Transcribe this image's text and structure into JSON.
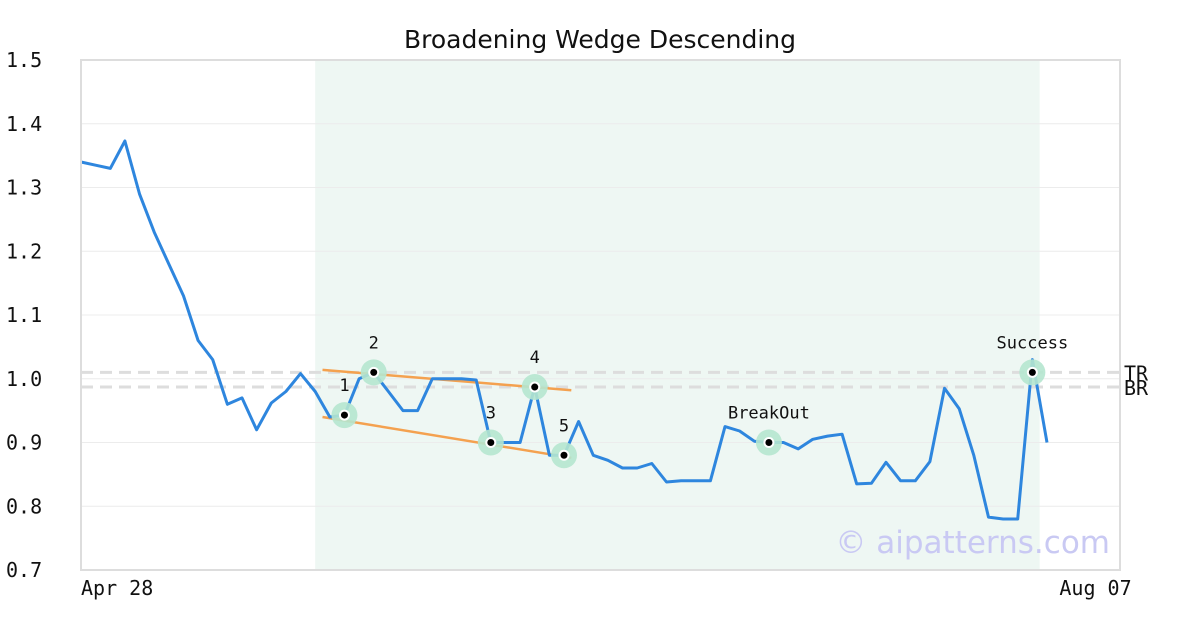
{
  "chart_data": {
    "type": "line",
    "title": "Broadening Wedge Descending",
    "xlabel": "",
    "ylabel": "",
    "ylim": [
      0.7,
      1.5
    ],
    "yticks": [
      "0.7",
      "0.8",
      "0.9",
      "1.0",
      "1.1",
      "1.2",
      "1.3",
      "1.4",
      "1.5"
    ],
    "x_tick_labels": [
      {
        "label": "Apr 28",
        "index": 0
      },
      {
        "label": "Aug 07",
        "index": 67
      }
    ],
    "grid": true,
    "colors": {
      "line": "#2e86de",
      "trendline": "#f4a14f",
      "marker_halo": "#b5e6cf",
      "highlight": "#eef7f3",
      "reference": "#dddddd",
      "frame": "#dddddd",
      "watermark": "#c9c9f3"
    },
    "highlight_range": [
      16,
      65.5
    ],
    "series": [
      {
        "values": [
          1.34,
          1.335,
          1.33,
          1.373,
          1.29,
          1.23,
          1.18,
          1.13,
          1.06,
          1.03,
          0.96,
          0.97,
          0.92,
          0.962,
          0.98,
          1.008,
          0.98,
          0.94,
          0.943,
          1.0,
          1.01,
          0.98,
          0.95,
          0.95,
          1.0,
          1.0,
          1.0,
          0.998,
          0.9,
          0.9,
          0.9,
          0.987,
          0.88,
          0.88,
          0.933,
          0.88,
          0.872,
          0.86,
          0.86,
          0.867,
          0.838,
          0.84,
          0.84,
          0.84,
          0.925,
          0.918,
          0.902,
          0.9,
          0.9,
          0.89,
          0.905,
          0.91,
          0.913,
          0.835,
          0.836,
          0.869,
          0.84,
          0.84,
          0.87,
          0.985,
          0.953,
          0.88,
          0.783,
          0.78,
          0.78,
          1.03,
          0.9
        ]
      }
    ],
    "trendlines": [
      {
        "from": [
          16.5,
          1.014
        ],
        "to": [
          33.5,
          0.982
        ]
      },
      {
        "from": [
          16.5,
          0.94
        ],
        "to": [
          33.5,
          0.876
        ]
      }
    ],
    "annotations": [
      {
        "label": "1",
        "x": 18,
        "y": 0.943
      },
      {
        "label": "2",
        "x": 20,
        "y": 1.01
      },
      {
        "label": "3",
        "x": 28,
        "y": 0.9
      },
      {
        "label": "4",
        "x": 31,
        "y": 0.987
      },
      {
        "label": "5",
        "x": 33,
        "y": 0.88
      },
      {
        "label": "BreakOut",
        "x": 47,
        "y": 0.9
      },
      {
        "label": "Success",
        "x": 65,
        "y": 1.01
      }
    ],
    "reference_lines": [
      {
        "label": "TR",
        "y": 1.01
      },
      {
        "label": "BR",
        "y": 0.987
      }
    ],
    "watermark": "© aipatterns.com"
  }
}
